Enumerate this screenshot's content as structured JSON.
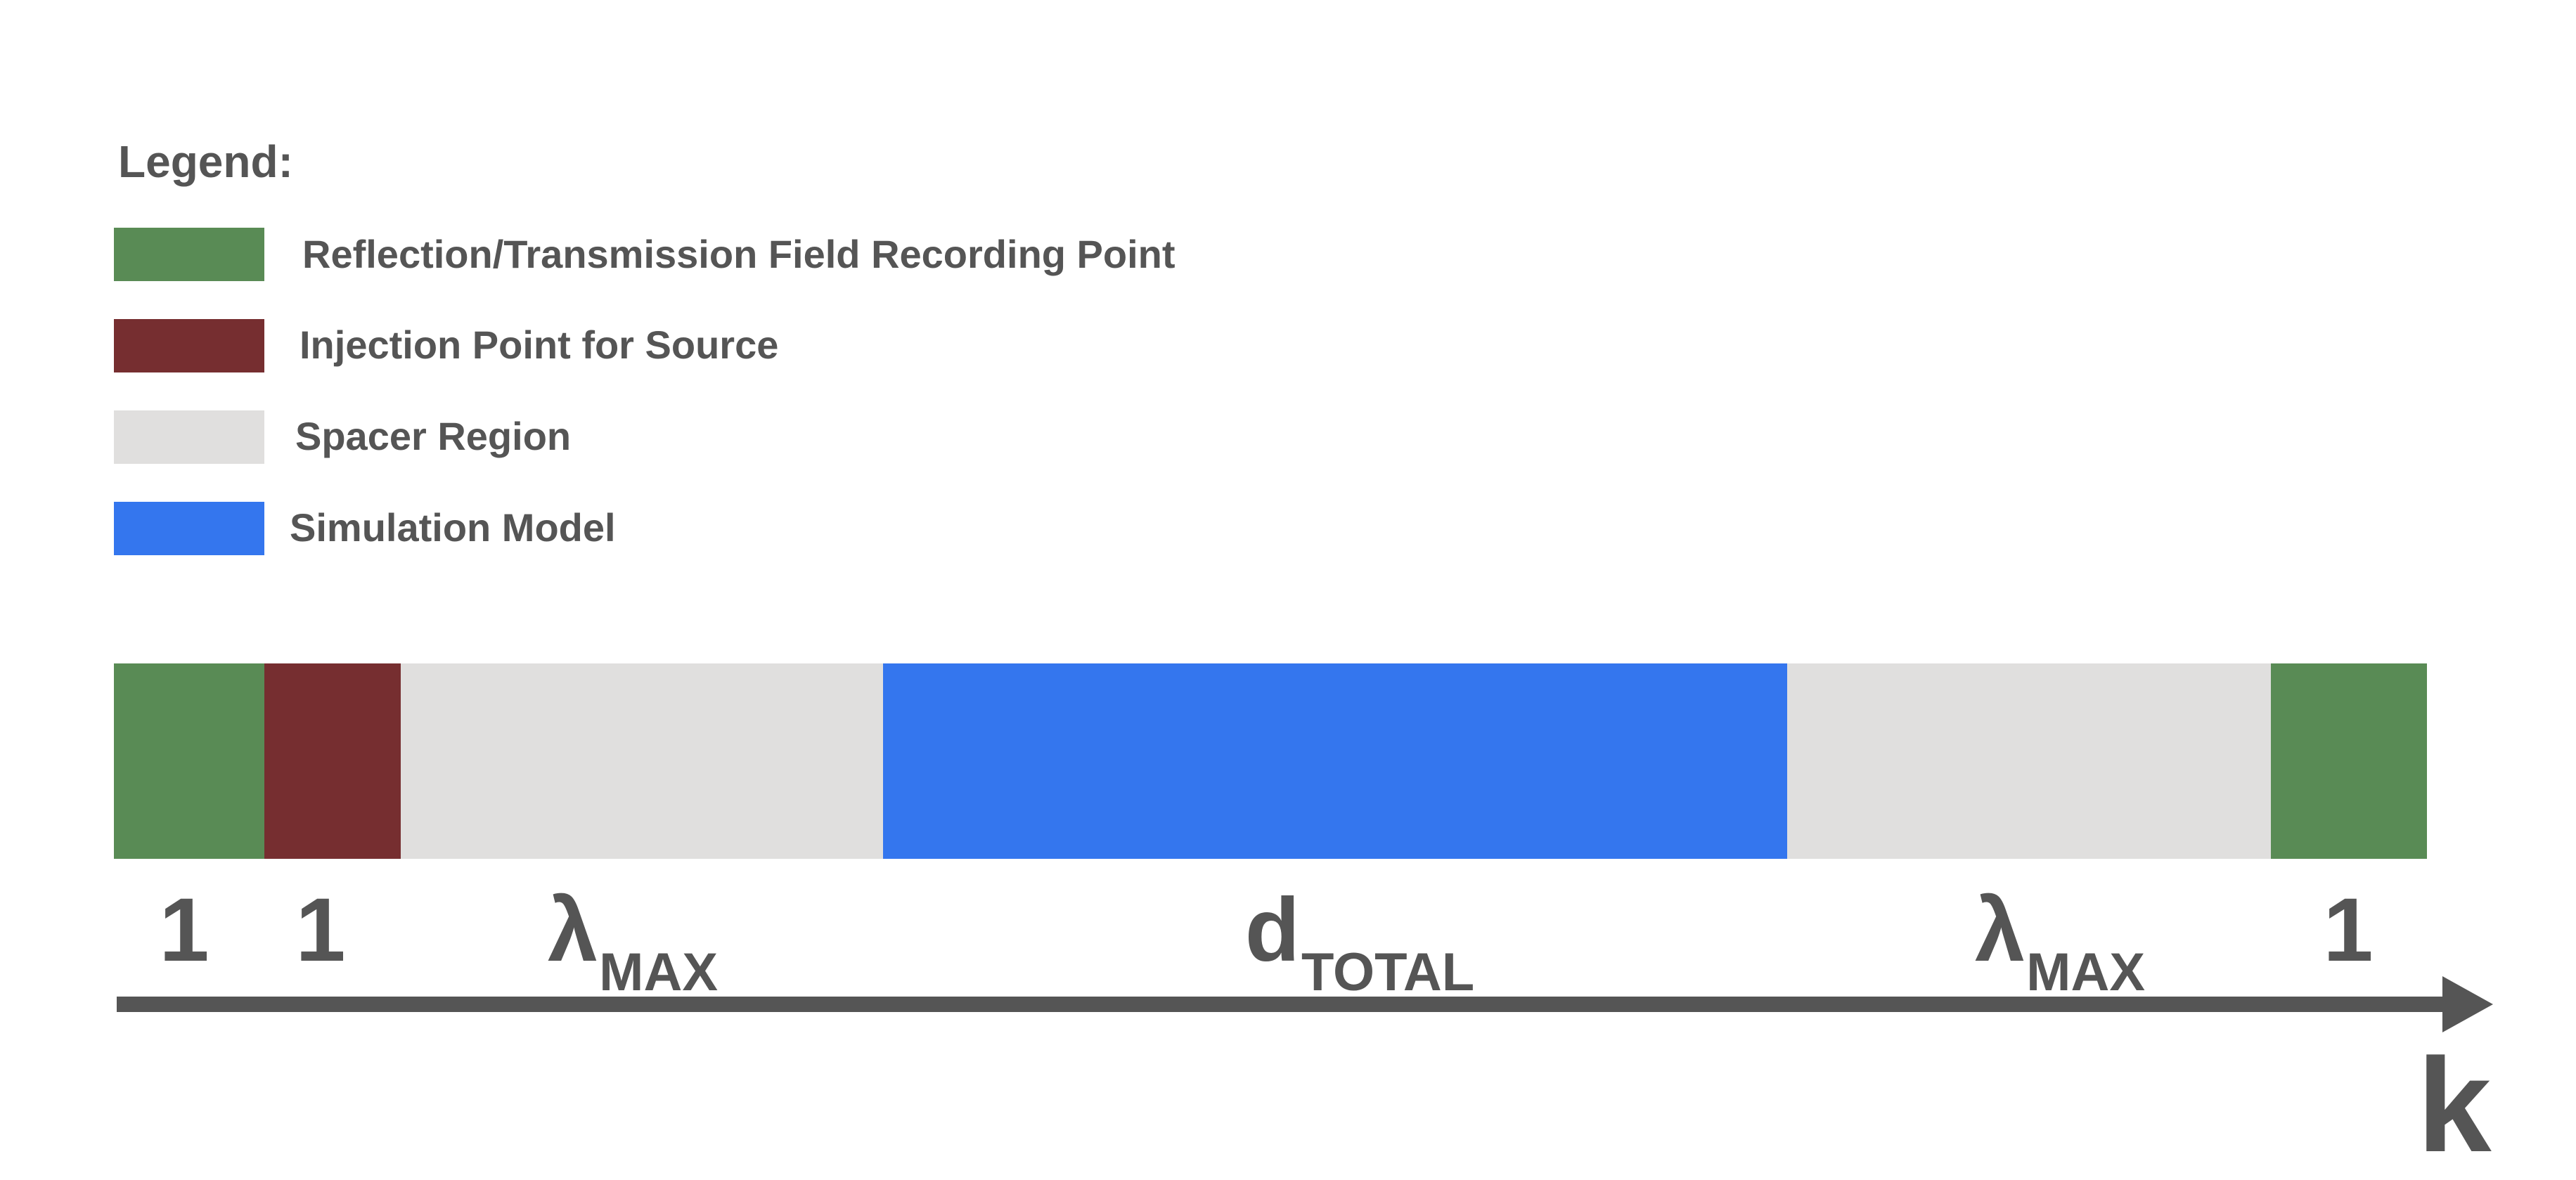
{
  "legend": {
    "title": "Legend:",
    "items": [
      {
        "label": "Reflection/Transmission Field Recording Point",
        "color": "#598b55"
      },
      {
        "label": "Injection Point for Source",
        "color": "#762e30"
      },
      {
        "label": "Spacer Region",
        "color": "#e0dfde"
      },
      {
        "label": "Simulation Model",
        "color": "#3476ee"
      }
    ]
  },
  "bar": {
    "segments": [
      {
        "kind": "recording-point",
        "color": "#598b55",
        "label": "1",
        "sub": ""
      },
      {
        "kind": "injection-point",
        "color": "#762e30",
        "label": "1",
        "sub": ""
      },
      {
        "kind": "spacer-region",
        "color": "#e0dfde",
        "label": "λ",
        "sub": "MAX"
      },
      {
        "kind": "simulation-model",
        "color": "#3476ee",
        "label": "d",
        "sub": "TOTAL"
      },
      {
        "kind": "spacer-region",
        "color": "#e0dfde",
        "label": "λ",
        "sub": "MAX"
      },
      {
        "kind": "recording-point",
        "color": "#598b55",
        "label": "1",
        "sub": ""
      }
    ]
  },
  "axis": {
    "label": "k",
    "color": "#555555"
  }
}
